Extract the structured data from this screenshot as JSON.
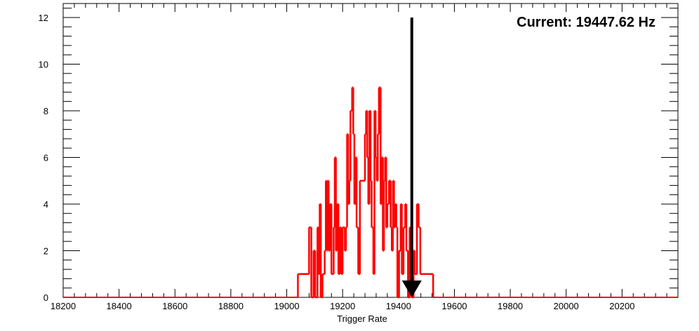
{
  "chart_data": {
    "type": "histogram",
    "title": "",
    "xlabel": "Trigger Rate",
    "ylabel": "",
    "xlim": [
      18200,
      20400
    ],
    "ylim": [
      0,
      12.6
    ],
    "x_ticks": [
      18200,
      18400,
      18600,
      18800,
      19000,
      19200,
      19400,
      19600,
      19800,
      20000,
      20200
    ],
    "x_tick_labels": [
      "18200",
      "18400",
      "18600",
      "18800",
      "19000",
      "19200",
      "19400",
      "19600",
      "19800",
      "20000",
      "20200"
    ],
    "y_ticks": [
      0,
      2,
      4,
      6,
      8,
      10,
      12
    ],
    "y_tick_labels": [
      "0",
      "2",
      "4",
      "6",
      "8",
      "10",
      "12"
    ],
    "grid": false,
    "series": [
      {
        "color": "#ff0000",
        "bins": [
          [
            19040,
            19050,
            1
          ],
          [
            19050,
            19080,
            1
          ],
          [
            19080,
            19088,
            3
          ],
          [
            19088,
            19096,
            0
          ],
          [
            19096,
            19102,
            2
          ],
          [
            19102,
            19110,
            0
          ],
          [
            19110,
            19114,
            3
          ],
          [
            19114,
            19118,
            1
          ],
          [
            19118,
            19122,
            4
          ],
          [
            19122,
            19128,
            0
          ],
          [
            19128,
            19136,
            1
          ],
          [
            19136,
            19140,
            2
          ],
          [
            19140,
            19143,
            5
          ],
          [
            19143,
            19146,
            2
          ],
          [
            19146,
            19150,
            5
          ],
          [
            19150,
            19155,
            2
          ],
          [
            19155,
            19160,
            4
          ],
          [
            19160,
            19168,
            1
          ],
          [
            19168,
            19172,
            3
          ],
          [
            19172,
            19176,
            6
          ],
          [
            19176,
            19180,
            2
          ],
          [
            19180,
            19185,
            4
          ],
          [
            19185,
            19190,
            1
          ],
          [
            19190,
            19195,
            3
          ],
          [
            19195,
            19200,
            1
          ],
          [
            19200,
            19208,
            3
          ],
          [
            19208,
            19212,
            2
          ],
          [
            19212,
            19216,
            3
          ],
          [
            19216,
            19220,
            7
          ],
          [
            19220,
            19224,
            4
          ],
          [
            19224,
            19228,
            5
          ],
          [
            19228,
            19234,
            8
          ],
          [
            19234,
            19238,
            9
          ],
          [
            19238,
            19242,
            7
          ],
          [
            19242,
            19246,
            4
          ],
          [
            19246,
            19250,
            6
          ],
          [
            19250,
            19256,
            3
          ],
          [
            19256,
            19262,
            1
          ],
          [
            19262,
            19268,
            5
          ],
          [
            19268,
            19275,
            5
          ],
          [
            19275,
            19280,
            5
          ],
          [
            19280,
            19284,
            7
          ],
          [
            19284,
            19288,
            8
          ],
          [
            19288,
            19292,
            6
          ],
          [
            19292,
            19296,
            4
          ],
          [
            19296,
            19300,
            8
          ],
          [
            19300,
            19304,
            5
          ],
          [
            19304,
            19310,
            3
          ],
          [
            19310,
            19314,
            1
          ],
          [
            19314,
            19318,
            8
          ],
          [
            19318,
            19322,
            6
          ],
          [
            19322,
            19326,
            5
          ],
          [
            19326,
            19330,
            7
          ],
          [
            19330,
            19336,
            9
          ],
          [
            19336,
            19340,
            4
          ],
          [
            19340,
            19344,
            6
          ],
          [
            19344,
            19348,
            2
          ],
          [
            19348,
            19352,
            5
          ],
          [
            19352,
            19356,
            6
          ],
          [
            19356,
            19360,
            3
          ],
          [
            19360,
            19366,
            4
          ],
          [
            19366,
            19372,
            5
          ],
          [
            19372,
            19376,
            3
          ],
          [
            19376,
            19380,
            2
          ],
          [
            19380,
            19384,
            5
          ],
          [
            19384,
            19388,
            3
          ],
          [
            19388,
            19392,
            4
          ],
          [
            19392,
            19396,
            3
          ],
          [
            19396,
            19402,
            0
          ],
          [
            19402,
            19408,
            2
          ],
          [
            19408,
            19412,
            4
          ],
          [
            19412,
            19418,
            1
          ],
          [
            19418,
            19424,
            3
          ],
          [
            19424,
            19428,
            4
          ],
          [
            19428,
            19434,
            2
          ],
          [
            19434,
            19440,
            0
          ],
          [
            19440,
            19448,
            3
          ],
          [
            19448,
            19454,
            0
          ],
          [
            19454,
            19458,
            2
          ],
          [
            19458,
            19466,
            1
          ],
          [
            19466,
            19472,
            4
          ],
          [
            19472,
            19478,
            3
          ],
          [
            19478,
            19486,
            1
          ],
          [
            19486,
            19496,
            1
          ],
          [
            19496,
            19524,
            1
          ],
          [
            19524,
            19528,
            0
          ]
        ]
      }
    ],
    "marker": {
      "x": 19447.62,
      "y_top": 12
    },
    "annotation": "Current: 19447.62 Hz"
  },
  "colors": {
    "histogram": "#ff0000",
    "arrow": "#000000",
    "axes": "#000000",
    "background": "#ffffff"
  }
}
